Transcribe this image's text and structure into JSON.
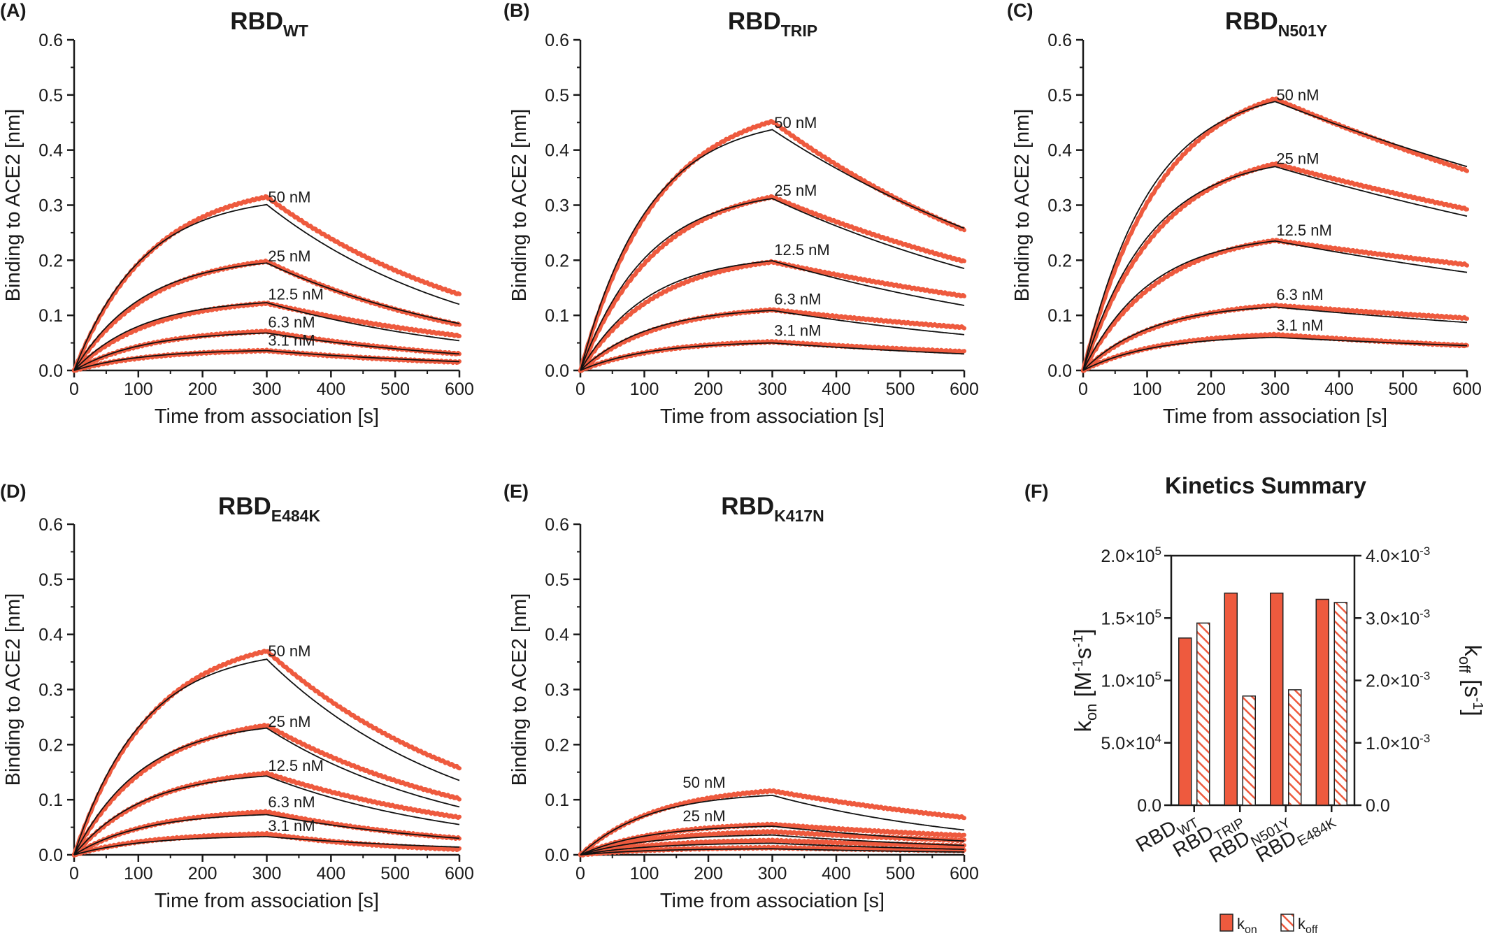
{
  "colors": {
    "data": "#ee5a3e",
    "fit": "#111111",
    "axis": "#1a1a1a",
    "bar_fill": "#ee5a3e",
    "bar_stroke": "#222222"
  },
  "chart_data": [
    {
      "type": "line",
      "letter": "(A)",
      "title": {
        "main": "RBD",
        "sub": "WT"
      },
      "xlabel": "Time from association [s]",
      "ylabel": "Binding to ACE2 [nm]",
      "xlim": [
        0,
        600
      ],
      "ylim": [
        0,
        0.6
      ],
      "xticks": [
        "0",
        "100",
        "200",
        "300",
        "400",
        "500",
        "600"
      ],
      "yticks": [
        "0.0",
        "0.1",
        "0.2",
        "0.3",
        "0.4",
        "0.5",
        "0.6"
      ],
      "association_end": 300,
      "series": [
        {
          "label": "50 nM",
          "fit_plateau": 0.301,
          "data_plateau": 0.315,
          "fit_end": 0.12,
          "data_end": 0.138,
          "label_x": 302,
          "label_y": 0.305
        },
        {
          "label": "25 nM",
          "fit_plateau": 0.195,
          "data_plateau": 0.198,
          "fit_end": 0.085,
          "data_end": 0.083,
          "label_x": 302,
          "label_y": 0.198
        },
        {
          "label": "12.5 nM",
          "fit_plateau": 0.123,
          "data_plateau": 0.122,
          "fit_end": 0.054,
          "data_end": 0.063,
          "label_x": 302,
          "label_y": 0.129
        },
        {
          "label": "6.3 nM",
          "fit_plateau": 0.068,
          "data_plateau": 0.071,
          "fit_end": 0.03,
          "data_end": 0.03,
          "label_x": 302,
          "label_y": 0.078
        },
        {
          "label": "3.1 nM",
          "fit_plateau": 0.036,
          "data_plateau": 0.036,
          "fit_end": 0.016,
          "data_end": 0.015,
          "label_x": 302,
          "label_y": 0.045
        }
      ]
    },
    {
      "type": "line",
      "letter": "(B)",
      "title": {
        "main": "RBD",
        "sub": "TRIP"
      },
      "xlabel": "Time from association [s]",
      "ylabel": "Binding to ACE2 [nm]",
      "xlim": [
        0,
        600
      ],
      "ylim": [
        0,
        0.6
      ],
      "xticks": [
        "0",
        "100",
        "200",
        "300",
        "400",
        "500",
        "600"
      ],
      "yticks": [
        "0.0",
        "0.1",
        "0.2",
        "0.3",
        "0.4",
        "0.5",
        "0.6"
      ],
      "association_end": 300,
      "series": [
        {
          "label": "50 nM",
          "fit_plateau": 0.437,
          "data_plateau": 0.452,
          "fit_end": 0.258,
          "data_end": 0.255,
          "label_x": 303,
          "label_y": 0.44
        },
        {
          "label": "25 nM",
          "fit_plateau": 0.312,
          "data_plateau": 0.315,
          "fit_end": 0.185,
          "data_end": 0.198,
          "label_x": 303,
          "label_y": 0.317
        },
        {
          "label": "12.5 nM",
          "fit_plateau": 0.199,
          "data_plateau": 0.197,
          "fit_end": 0.118,
          "data_end": 0.135,
          "label_x": 303,
          "label_y": 0.209
        },
        {
          "label": "6.3 nM",
          "fit_plateau": 0.109,
          "data_plateau": 0.11,
          "fit_end": 0.065,
          "data_end": 0.078,
          "label_x": 303,
          "label_y": 0.12
        },
        {
          "label": "3.1 nM",
          "fit_plateau": 0.05,
          "data_plateau": 0.052,
          "fit_end": 0.03,
          "data_end": 0.034,
          "label_x": 303,
          "label_y": 0.063
        }
      ]
    },
    {
      "type": "line",
      "letter": "(C)",
      "title": {
        "main": "RBD",
        "sub": "N501Y"
      },
      "xlabel": "Time from association [s]",
      "ylabel": "Binding to ACE2 [nm]",
      "xlim": [
        0,
        600
      ],
      "ylim": [
        0,
        0.6
      ],
      "xticks": [
        "0",
        "100",
        "200",
        "300",
        "400",
        "500",
        "600"
      ],
      "yticks": [
        "0.0",
        "0.1",
        "0.2",
        "0.3",
        "0.4",
        "0.5",
        "0.6"
      ],
      "association_end": 300,
      "series": [
        {
          "label": "50 nM",
          "fit_plateau": 0.488,
          "data_plateau": 0.493,
          "fit_end": 0.37,
          "data_end": 0.363,
          "label_x": 302,
          "label_y": 0.49
        },
        {
          "label": "25 nM",
          "fit_plateau": 0.37,
          "data_plateau": 0.375,
          "fit_end": 0.28,
          "data_end": 0.293,
          "label_x": 302,
          "label_y": 0.375
        },
        {
          "label": "12.5 nM",
          "fit_plateau": 0.235,
          "data_plateau": 0.236,
          "fit_end": 0.178,
          "data_end": 0.192,
          "label_x": 302,
          "label_y": 0.245
        },
        {
          "label": "6.3 nM",
          "fit_plateau": 0.115,
          "data_plateau": 0.118,
          "fit_end": 0.087,
          "data_end": 0.095,
          "label_x": 302,
          "label_y": 0.128
        },
        {
          "label": "3.1 nM",
          "fit_plateau": 0.06,
          "data_plateau": 0.065,
          "fit_end": 0.045,
          "data_end": 0.045,
          "label_x": 302,
          "label_y": 0.072
        }
      ]
    },
    {
      "type": "line",
      "letter": "(D)",
      "title": {
        "main": "RBD",
        "sub": "E484K"
      },
      "xlabel": "Time from association [s]",
      "ylabel": "Binding to ACE2 [nm]",
      "xlim": [
        0,
        600
      ],
      "ylim": [
        0,
        0.6
      ],
      "xticks": [
        "0",
        "100",
        "200",
        "300",
        "400",
        "500",
        "600"
      ],
      "yticks": [
        "0.0",
        "0.1",
        "0.2",
        "0.3",
        "0.4",
        "0.5",
        "0.6"
      ],
      "association_end": 300,
      "series": [
        {
          "label": "50 nM",
          "fit_plateau": 0.355,
          "data_plateau": 0.37,
          "fit_end": 0.135,
          "data_end": 0.158,
          "label_x": 302,
          "label_y": 0.36
        },
        {
          "label": "25 nM",
          "fit_plateau": 0.23,
          "data_plateau": 0.235,
          "fit_end": 0.087,
          "data_end": 0.102,
          "label_x": 302,
          "label_y": 0.232
        },
        {
          "label": "12.5 nM",
          "fit_plateau": 0.143,
          "data_plateau": 0.148,
          "fit_end": 0.055,
          "data_end": 0.068,
          "label_x": 302,
          "label_y": 0.152
        },
        {
          "label": "6.3 nM",
          "fit_plateau": 0.073,
          "data_plateau": 0.078,
          "fit_end": 0.03,
          "data_end": 0.03,
          "label_x": 302,
          "label_y": 0.086
        },
        {
          "label": "3.1 nM",
          "fit_plateau": 0.033,
          "data_plateau": 0.038,
          "fit_end": 0.014,
          "data_end": 0.01,
          "label_x": 302,
          "label_y": 0.043
        }
      ]
    },
    {
      "type": "line",
      "letter": "(E)",
      "title": {
        "main": "RBD",
        "sub": "K417N"
      },
      "xlabel": "Time from association [s]",
      "ylabel": "Binding to ACE2 [nm]",
      "xlim": [
        0,
        600
      ],
      "ylim": [
        0,
        0.6
      ],
      "xticks": [
        "0",
        "100",
        "200",
        "300",
        "400",
        "500",
        "600"
      ],
      "yticks": [
        "0.0",
        "0.1",
        "0.2",
        "0.3",
        "0.4",
        "0.5",
        "0.6"
      ],
      "association_end": 300,
      "series": [
        {
          "label": "50 nM",
          "fit_plateau": 0.108,
          "data_plateau": 0.116,
          "fit_end": 0.045,
          "data_end": 0.068,
          "label_x": 160,
          "label_y": 0.122
        },
        {
          "label": "25 nM",
          "fit_plateau": 0.052,
          "data_plateau": 0.055,
          "fit_end": 0.025,
          "data_end": 0.035,
          "label_x": 160,
          "label_y": 0.061
        },
        {
          "label": "",
          "fit_plateau": 0.036,
          "data_plateau": 0.042,
          "fit_end": 0.017,
          "data_end": 0.026,
          "label_x": 0,
          "label_y": 0
        },
        {
          "label": "",
          "fit_plateau": 0.021,
          "data_plateau": 0.026,
          "fit_end": 0.01,
          "data_end": 0.016,
          "label_x": 0,
          "label_y": 0
        },
        {
          "label": "",
          "fit_plateau": 0.011,
          "data_plateau": 0.013,
          "fit_end": 0.005,
          "data_end": 0.008,
          "label_x": 0,
          "label_y": 0
        }
      ]
    },
    {
      "type": "bar",
      "letter": "(F)",
      "title": "Kinetics Summary",
      "categories": [
        {
          "main": "RBD",
          "sub": "WT"
        },
        {
          "main": "RBD",
          "sub": "TRIP"
        },
        {
          "main": "RBD",
          "sub": "N501Y"
        },
        {
          "main": "RBD",
          "sub": "E484K"
        }
      ],
      "series": [
        {
          "name": {
            "main": "k",
            "sub": "on"
          },
          "axis": "left",
          "pattern": "solid",
          "values": [
            134000,
            170000,
            170000,
            165000
          ]
        },
        {
          "name": {
            "main": "k",
            "sub": "off"
          },
          "axis": "right",
          "pattern": "hatched",
          "values": [
            0.00292,
            0.00175,
            0.00185,
            0.00325
          ]
        }
      ],
      "ylabel_left": {
        "main": "k",
        "sub": "on",
        "rest_a": " [M",
        "sup_a": "-1",
        "rest_b": "s",
        "sup_b": "-1",
        "rest_c": "]"
      },
      "ylabel_right": {
        "main": "k",
        "sub": "off",
        "rest_a": " [s",
        "sup_a": "-1",
        "rest_c": "]"
      },
      "ylim_left": [
        0,
        200000
      ],
      "ylim_right": [
        0,
        0.004
      ],
      "yticks_left": [
        {
          "m": "0.0",
          "e": ""
        },
        {
          "m": "5.0×10",
          "e": "4"
        },
        {
          "m": "1.0×10",
          "e": "5"
        },
        {
          "m": "1.5×10",
          "e": "5"
        },
        {
          "m": "2.0×10",
          "e": "5"
        }
      ],
      "yticks_right": [
        {
          "m": "0.0",
          "e": ""
        },
        {
          "m": "1.0×10",
          "e": "-3"
        },
        {
          "m": "2.0×10",
          "e": "-3"
        },
        {
          "m": "3.0×10",
          "e": "-3"
        },
        {
          "m": "4.0×10",
          "e": "-3"
        }
      ],
      "legend": "bottom"
    }
  ]
}
